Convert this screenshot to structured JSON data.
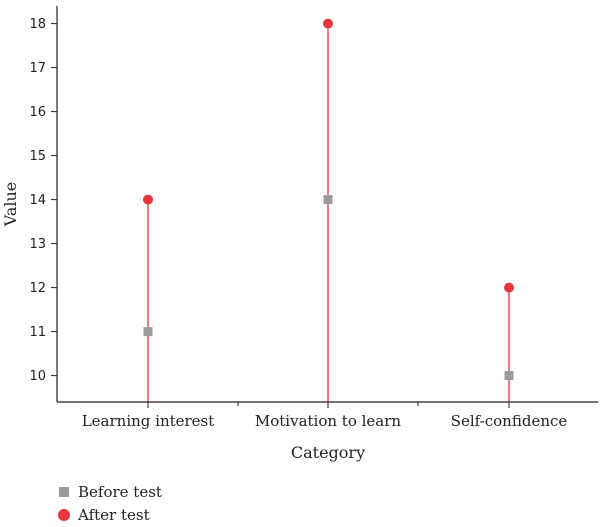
{
  "chart_data": {
    "type": "scatter",
    "title": "",
    "xlabel": "Category",
    "ylabel": "Value",
    "categories": [
      "Learning interest",
      "Motivation to learn",
      "Self-confidence"
    ],
    "series": [
      {
        "name": "Before test",
        "values": [
          11,
          14,
          10
        ],
        "color": "#9b9b9b",
        "marker": "square"
      },
      {
        "name": "After test",
        "values": [
          14,
          18,
          12
        ],
        "color": "#e8343c",
        "marker": "circle"
      }
    ],
    "drop_lines": true,
    "drop_line_color": "#e8343c",
    "ylim": [
      9.4,
      18.4
    ],
    "yticks": [
      10,
      11,
      12,
      13,
      14,
      15,
      16,
      17,
      18
    ],
    "grid": false,
    "legend_position": "bottom-left"
  }
}
